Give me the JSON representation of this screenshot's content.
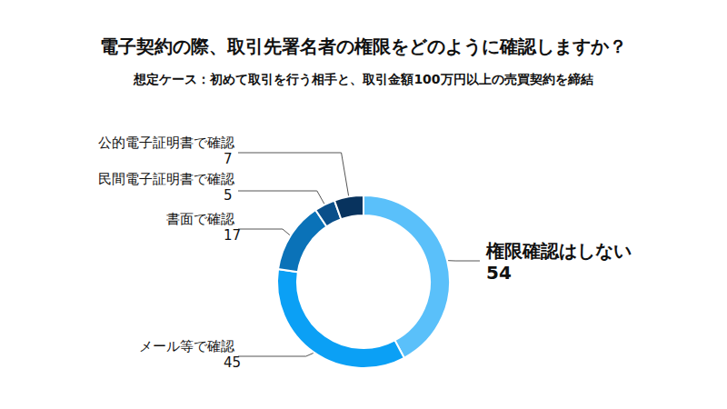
{
  "chart_data": {
    "type": "pie",
    "title": "電子契約の際、取引先署名者の権限をどのように確認しますか？",
    "subtitle": "想定ケース：初めて取引を行う相手と、取引金額100万円以上の売買契約を締結",
    "categories": [
      "権限確認はしない",
      "メール等で確認",
      "書面で確認",
      "民間電子証明書で確認",
      "公的電子証明書で確認"
    ],
    "values": [
      54,
      45,
      17,
      5,
      7
    ],
    "colors": [
      "#5ac0fa",
      "#0ba0f5",
      "#0a72b8",
      "#0a4f8a",
      "#08335e"
    ],
    "data_labels": true
  }
}
